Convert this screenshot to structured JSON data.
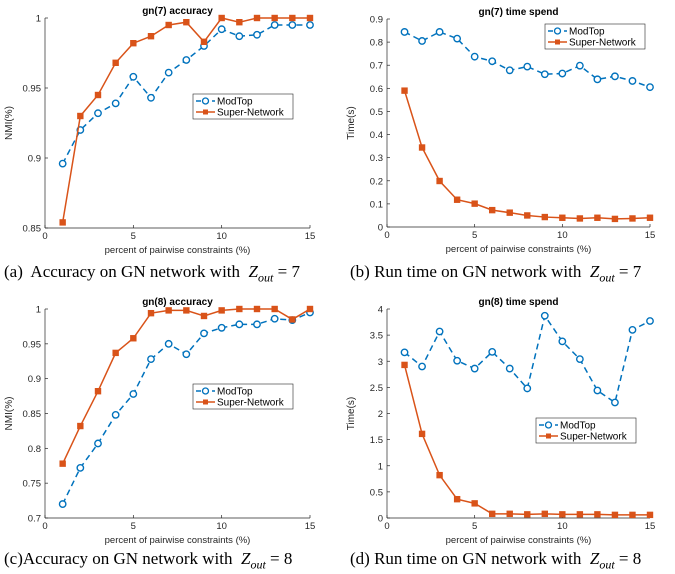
{
  "colors": {
    "modtop": "#0072BD",
    "supernetwork": "#D95319"
  },
  "captions": [
    {
      "prefix": "(a)  Accuracy on GN network with  ",
      "var": "Z",
      "sub": "out",
      "suffix": " = 7"
    },
    {
      "prefix": "(b) Run time on GN network with  ",
      "var": "Z",
      "sub": "out",
      "suffix": " = 7"
    },
    {
      "prefix": "(c)Accuracy on GN network with  ",
      "var": "Z",
      "sub": "out",
      "suffix": " = 8"
    },
    {
      "prefix": "(d) Run time on GN network with  ",
      "var": "Z",
      "sub": "out",
      "suffix": " = 8"
    }
  ],
  "chart_data": [
    {
      "type": "line",
      "title": "gn(7) accuracy",
      "xlabel": "percent of pairwise constraints (%)",
      "ylabel": "NMI(%)",
      "xlim": [
        0,
        15
      ],
      "ylim": [
        0.85,
        1
      ],
      "xticks": [
        "0",
        "5",
        "10",
        "15"
      ],
      "yticks": [
        "0.85",
        "0.9",
        "0.95",
        "1"
      ],
      "legend": "center-right",
      "x": [
        1,
        2,
        3,
        4,
        5,
        6,
        7,
        8,
        9,
        10,
        11,
        12,
        13,
        14,
        15
      ],
      "series": [
        {
          "name": "ModTop",
          "marker": "circle",
          "linestyle": "dashed",
          "values": [
            0.896,
            0.92,
            0.932,
            0.939,
            0.958,
            0.943,
            0.961,
            0.97,
            0.98,
            0.992,
            0.987,
            0.988,
            0.995,
            0.995,
            0.995
          ]
        },
        {
          "name": "Super-Network",
          "marker": "square",
          "linestyle": "solid",
          "values": [
            0.854,
            0.93,
            0.945,
            0.968,
            0.982,
            0.987,
            0.995,
            0.997,
            0.983,
            1.0,
            0.997,
            1.0,
            1.0,
            1.0,
            1.0
          ]
        }
      ]
    },
    {
      "type": "line",
      "title": "gn(7) time spend",
      "xlabel": "percent of pairwise constraints (%)",
      "ylabel": "Time(s)",
      "xlim": [
        0,
        15
      ],
      "ylim": [
        0,
        0.9
      ],
      "xticks": [
        "0",
        "5",
        "10",
        "15"
      ],
      "yticks": [
        "0",
        "0.1",
        "0.2",
        "0.3",
        "0.4",
        "0.5",
        "0.6",
        "0.7",
        "0.8",
        "0.9"
      ],
      "legend": "top-right",
      "x": [
        1,
        2,
        3,
        4,
        5,
        6,
        7,
        8,
        9,
        10,
        11,
        12,
        13,
        14,
        15
      ],
      "series": [
        {
          "name": "ModTop",
          "marker": "circle",
          "linestyle": "dashed",
          "values": [
            0.844,
            0.805,
            0.844,
            0.815,
            0.737,
            0.717,
            0.678,
            0.694,
            0.661,
            0.664,
            0.698,
            0.639,
            0.652,
            0.632,
            0.605
          ]
        },
        {
          "name": "Super-Network",
          "marker": "square",
          "linestyle": "solid",
          "values": [
            0.59,
            0.344,
            0.199,
            0.118,
            0.101,
            0.073,
            0.062,
            0.05,
            0.043,
            0.04,
            0.037,
            0.04,
            0.035,
            0.037,
            0.04
          ]
        }
      ]
    },
    {
      "type": "line",
      "title": "gn(8) accuracy",
      "xlabel": "percent of pairwise constraints (%)",
      "ylabel": "NMI(%)",
      "xlim": [
        0,
        15
      ],
      "ylim": [
        0.7,
        1
      ],
      "xticks": [
        "0",
        "5",
        "10",
        "15"
      ],
      "yticks": [
        "0.7",
        "0.75",
        "0.8",
        "0.85",
        "0.9",
        "0.95",
        "1"
      ],
      "legend": "center-right",
      "x": [
        1,
        2,
        3,
        4,
        5,
        6,
        7,
        8,
        9,
        10,
        11,
        12,
        13,
        14,
        15
      ],
      "series": [
        {
          "name": "ModTop",
          "marker": "circle",
          "linestyle": "dashed",
          "values": [
            0.72,
            0.772,
            0.807,
            0.848,
            0.878,
            0.928,
            0.95,
            0.935,
            0.965,
            0.973,
            0.978,
            0.978,
            0.986,
            0.984,
            0.995
          ]
        },
        {
          "name": "Super-Network",
          "marker": "square",
          "linestyle": "solid",
          "values": [
            0.778,
            0.832,
            0.882,
            0.937,
            0.958,
            0.994,
            0.998,
            0.998,
            0.99,
            0.998,
            1.0,
            1.0,
            1.0,
            0.985,
            1.0
          ]
        }
      ]
    },
    {
      "type": "line",
      "title": "gn(8) time spend",
      "xlabel": "percent of pairwise constraints (%)",
      "ylabel": "Time(s)",
      "xlim": [
        0,
        15
      ],
      "ylim": [
        0,
        4
      ],
      "xticks": [
        "0",
        "5",
        "10",
        "15"
      ],
      "yticks": [
        "0",
        "0.5",
        "1",
        "1.5",
        "2",
        "2.5",
        "3",
        "3.5",
        "4"
      ],
      "legend": "center-right",
      "x": [
        1,
        2,
        3,
        4,
        5,
        6,
        7,
        8,
        9,
        10,
        11,
        12,
        13,
        14,
        15
      ],
      "series": [
        {
          "name": "ModTop",
          "marker": "circle",
          "linestyle": "dashed",
          "values": [
            3.17,
            2.9,
            3.57,
            3.01,
            2.86,
            3.18,
            2.86,
            2.48,
            3.87,
            3.38,
            3.04,
            2.44,
            2.21,
            3.6,
            3.77
          ]
        },
        {
          "name": "Super-Network",
          "marker": "square",
          "linestyle": "solid",
          "values": [
            2.93,
            1.61,
            0.82,
            0.36,
            0.28,
            0.08,
            0.08,
            0.07,
            0.08,
            0.07,
            0.07,
            0.07,
            0.06,
            0.06,
            0.06
          ]
        }
      ]
    }
  ]
}
